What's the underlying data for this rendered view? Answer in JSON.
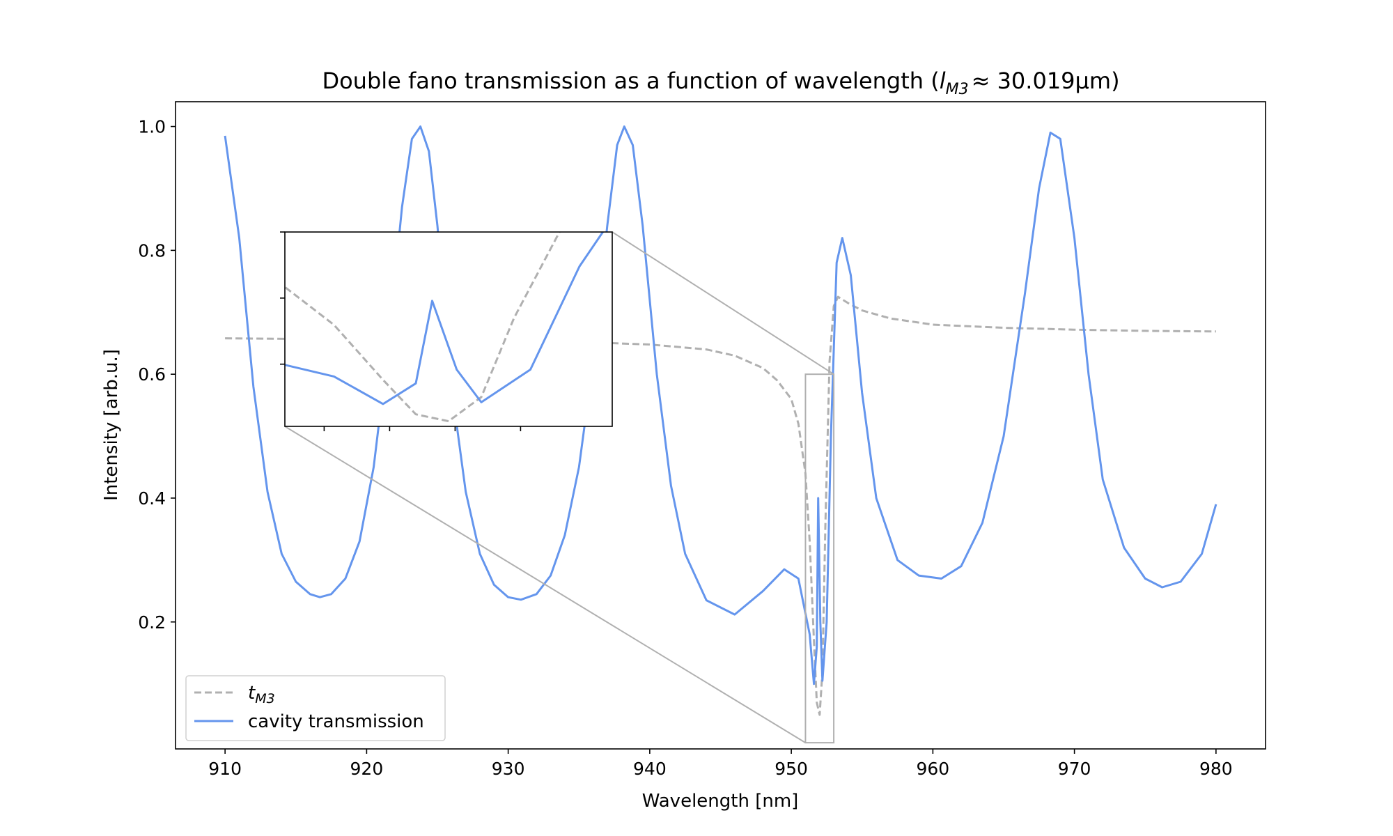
{
  "chart_data": {
    "type": "line",
    "title_main": "Double fano transmission as a function of wavelength (",
    "title_l": "l",
    "title_sub": "M3",
    "title_tail": "≈ 30.019µm)",
    "xlabel": "Wavelength [nm]",
    "ylabel": "Intensity [arb.u.]",
    "xlim": [
      906.5,
      983.5
    ],
    "ylim": [
      -0.005,
      1.04
    ],
    "xticks": [
      910,
      920,
      930,
      940,
      950,
      960,
      970,
      980
    ],
    "yticks": [
      0.2,
      0.4,
      0.6,
      0.8,
      1.0
    ],
    "grid": false,
    "legend_position": "lower-left",
    "series": [
      {
        "name_base": "t",
        "name_sub": "M3",
        "style": "dashed",
        "color": "#b0b0b0",
        "x": [
          910,
          915,
          920,
          925,
          930,
          935,
          940,
          944,
          946,
          948,
          949,
          950,
          950.5,
          951,
          951.3,
          951.6,
          951.8,
          952,
          952.2,
          952.4,
          952.7,
          953,
          953.3,
          954,
          955,
          957,
          960,
          965,
          970,
          975,
          980
        ],
        "y": [
          0.658,
          0.657,
          0.656,
          0.655,
          0.654,
          0.652,
          0.648,
          0.64,
          0.63,
          0.61,
          0.59,
          0.56,
          0.52,
          0.44,
          0.33,
          0.17,
          0.07,
          0.05,
          0.12,
          0.35,
          0.62,
          0.71,
          0.725,
          0.715,
          0.703,
          0.69,
          0.68,
          0.675,
          0.672,
          0.67,
          0.669
        ]
      },
      {
        "name": "cavity transmission",
        "style": "solid",
        "color": "#6495ed",
        "x": [
          910,
          911,
          912,
          913,
          914,
          915,
          916,
          916.7,
          917.5,
          918.5,
          919.5,
          920.5,
          921.5,
          922.5,
          923.2,
          923.8,
          924.4,
          925,
          926,
          927,
          928,
          929,
          930,
          930.9,
          932,
          933,
          934,
          935,
          936,
          937,
          937.7,
          938.2,
          938.8,
          939.5,
          940.5,
          941.5,
          942.5,
          944,
          946,
          948,
          949.5,
          950.5,
          951.3,
          951.6,
          951.8,
          951.9,
          952.05,
          952.2,
          952.5,
          952.8,
          953.2,
          953.6,
          954.2,
          955,
          956,
          957.5,
          959,
          960.6,
          962,
          963.5,
          965,
          966.5,
          967.5,
          968.3,
          969,
          970,
          971,
          972,
          973.5,
          975,
          976.2,
          977.5,
          979,
          980
        ],
        "y": [
          0.985,
          0.82,
          0.58,
          0.41,
          0.31,
          0.265,
          0.245,
          0.24,
          0.245,
          0.27,
          0.33,
          0.45,
          0.64,
          0.87,
          0.98,
          1.0,
          0.96,
          0.84,
          0.58,
          0.41,
          0.31,
          0.26,
          0.24,
          0.236,
          0.245,
          0.275,
          0.34,
          0.45,
          0.62,
          0.84,
          0.97,
          1.0,
          0.97,
          0.84,
          0.6,
          0.42,
          0.31,
          0.235,
          0.212,
          0.25,
          0.285,
          0.27,
          0.18,
          0.1,
          0.16,
          0.4,
          0.2,
          0.105,
          0.2,
          0.5,
          0.78,
          0.82,
          0.76,
          0.57,
          0.4,
          0.3,
          0.275,
          0.27,
          0.29,
          0.36,
          0.5,
          0.73,
          0.9,
          0.99,
          0.98,
          0.82,
          0.6,
          0.43,
          0.32,
          0.27,
          0.256,
          0.265,
          0.31,
          0.39
        ]
      }
    ],
    "zoom_region": {
      "x": [
        951.0,
        953.0
      ],
      "y": [
        0.005,
        0.6
      ]
    }
  }
}
